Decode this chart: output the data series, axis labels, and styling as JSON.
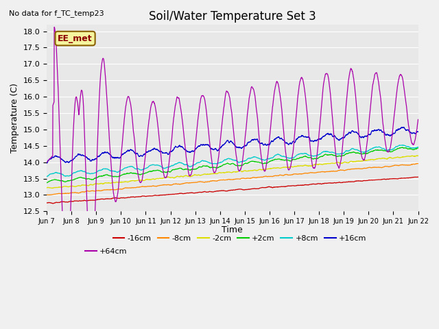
{
  "title": "Soil/Water Temperature Set 3",
  "xlabel": "Time",
  "ylabel": "Temperature (C)",
  "no_data_text": "No data for f_TC_temp23",
  "annotation_text": "EE_met",
  "ylim": [
    12.5,
    18.2
  ],
  "yticks": [
    12.5,
    13.0,
    13.5,
    14.0,
    14.5,
    15.0,
    15.5,
    16.0,
    16.5,
    17.0,
    17.5,
    18.0
  ],
  "xtick_labels": [
    "Jun 7",
    "Jun 8",
    "Jun 9",
    "Jun 10",
    "Jun 11",
    "Jun 12",
    "Jun 13",
    "Jun 14",
    "Jun 15",
    "Jun 16",
    "Jun 17",
    "Jun 18",
    "Jun 19",
    "Jun 20",
    "Jun 21",
    "Jun 22"
  ],
  "series_colors": {
    "-16cm": "#cc0000",
    "-8cm": "#ff8800",
    "-2cm": "#dddd00",
    "+2cm": "#00cc00",
    "+8cm": "#00cccc",
    "+16cm": "#0000cc",
    "+64cm": "#aa00aa"
  },
  "legend_labels": [
    "-16cm",
    "-8cm",
    "-2cm",
    "+2cm",
    "+8cm",
    "+16cm",
    "+64cm"
  ],
  "fig_facecolor": "#f0f0f0",
  "ax_facecolor": "#e8e8e8"
}
